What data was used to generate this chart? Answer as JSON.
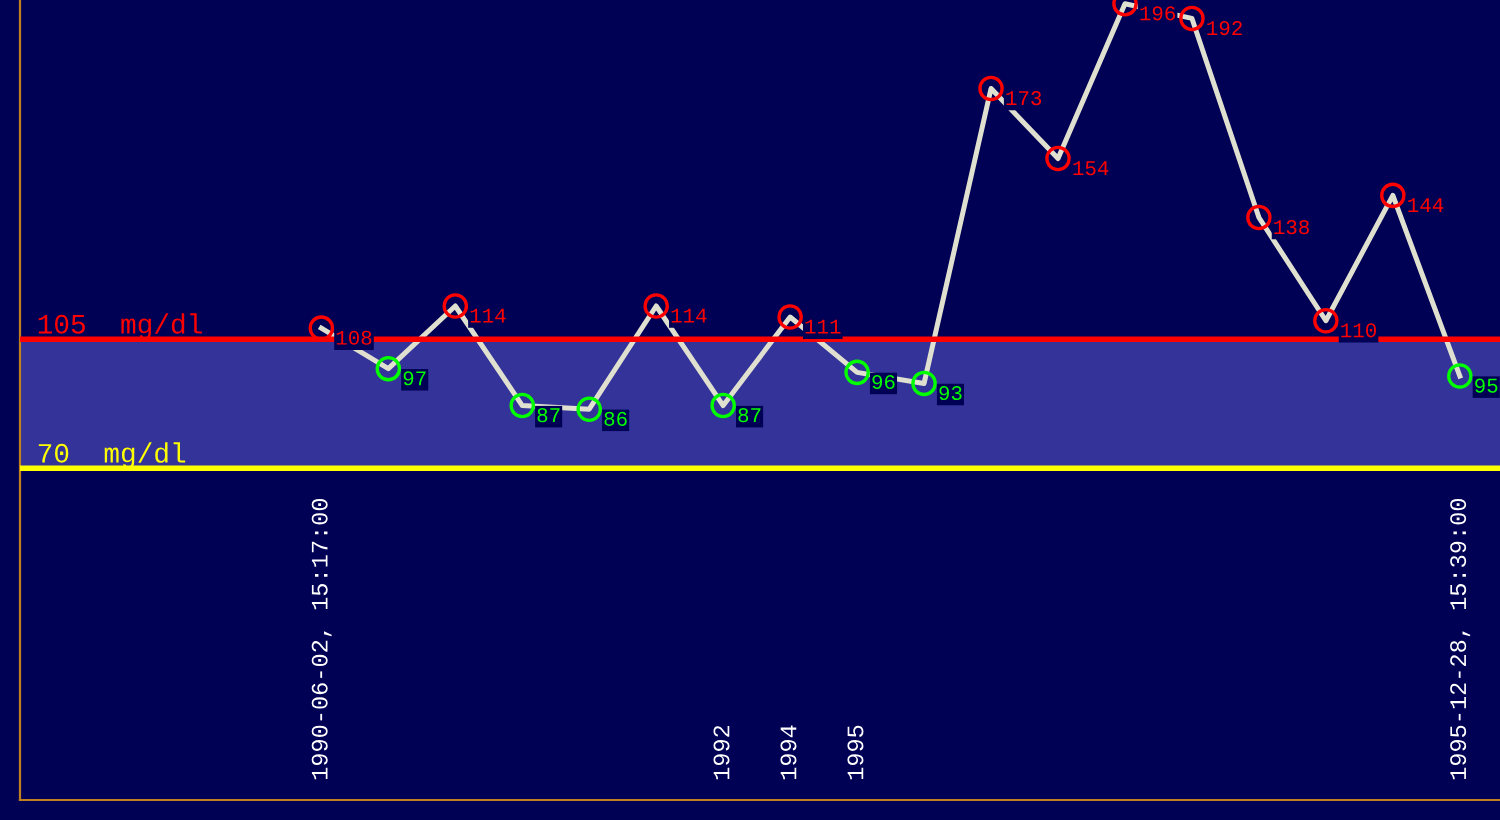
{
  "chart_data": {
    "type": "line",
    "categories": [
      "1990-06-02, 15:17:00",
      null,
      null,
      null,
      null,
      null,
      "1992",
      "1994",
      "1995",
      null,
      null,
      null,
      null,
      null,
      null,
      null,
      null,
      "1995-12-28, 15:39:00"
    ],
    "series": [
      {
        "color": "#e0e0d0",
        "values": [
          108,
          97,
          114,
          87,
          86,
          114,
          87,
          111,
          96,
          93,
          173,
          154,
          196,
          192,
          138,
          110,
          144,
          95
        ],
        "colors": [
          "#ff0000",
          "#00ff00",
          "#ff0000",
          "#00ff00",
          "#00ff00",
          "#ff0000",
          "#00ff00",
          "#ff0000",
          "#00ff00",
          "#00ff00",
          "#ff0000",
          "#ff0000",
          "#ff0000",
          "#ff0000",
          "#ff0000",
          "#ff0000",
          "#ff0000",
          "#00ff00"
        ]
      }
    ],
    "data_labels": true,
    "marker": "circle",
    "ylim": [
      -20,
      197
    ],
    "tick_labels": "x",
    "grid": false,
    "ref_lines": [
      {
        "axis": "y",
        "value": 105,
        "label": "105  mg/dl",
        "color": "#ff0000"
      },
      {
        "axis": "y",
        "value": 70,
        "label": "70  mg/dl",
        "color": "#ffff00"
      }
    ],
    "bands": [
      {
        "axis": "y",
        "from": 70,
        "to": 105,
        "color": "#333399"
      }
    ]
  }
}
